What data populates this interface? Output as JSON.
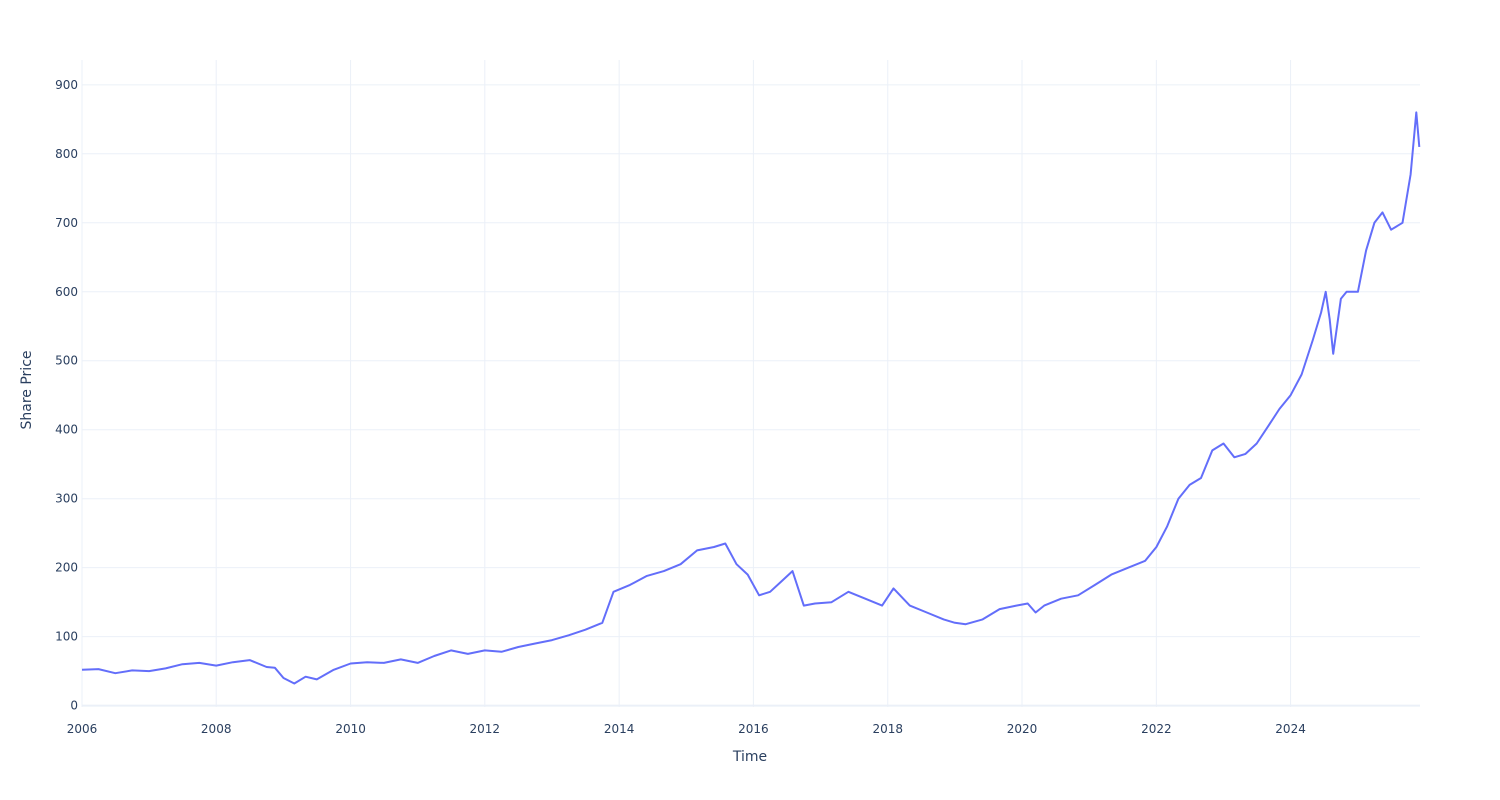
{
  "chart_data": {
    "type": "line",
    "xlabel": "Time",
    "ylabel": "Share Price",
    "x_axis_type": "date",
    "xlim": [
      "2006-01-01",
      "2025-12-05"
    ],
    "ylim": [
      -2,
      936
    ],
    "x_ticks": [
      "2006",
      "2008",
      "2010",
      "2012",
      "2014",
      "2016",
      "2018",
      "2020",
      "2022",
      "2024"
    ],
    "y_ticks": [
      0,
      100,
      200,
      300,
      400,
      500,
      600,
      700,
      800,
      900
    ],
    "grid": true,
    "legend": "none",
    "series": [
      {
        "color": "#636efa",
        "x": [
          "2006-01-01",
          "2006-04-01",
          "2006-07-01",
          "2006-10-01",
          "2007-01-01",
          "2007-04-01",
          "2007-07-01",
          "2007-10-01",
          "2008-01-01",
          "2008-04-01",
          "2008-07-01",
          "2008-10-01",
          "2008-11-15",
          "2009-01-01",
          "2009-03-01",
          "2009-05-01",
          "2009-07-01",
          "2009-10-01",
          "2010-01-01",
          "2010-04-01",
          "2010-07-01",
          "2010-10-01",
          "2011-01-01",
          "2011-04-01",
          "2011-07-01",
          "2011-10-01",
          "2012-01-01",
          "2012-04-01",
          "2012-07-01",
          "2012-10-01",
          "2013-01-01",
          "2013-04-01",
          "2013-07-01",
          "2013-10-01",
          "2013-12-01",
          "2014-03-01",
          "2014-06-01",
          "2014-09-01",
          "2014-12-01",
          "2015-03-01",
          "2015-06-01",
          "2015-08-01",
          "2015-10-01",
          "2015-12-01",
          "2016-02-01",
          "2016-04-01",
          "2016-06-01",
          "2016-08-01",
          "2016-10-01",
          "2016-12-01",
          "2017-03-01",
          "2017-06-01",
          "2017-09-01",
          "2017-12-01",
          "2018-02-01",
          "2018-05-01",
          "2018-08-01",
          "2018-11-01",
          "2019-01-01",
          "2019-03-01",
          "2019-06-01",
          "2019-09-01",
          "2019-12-01",
          "2020-02-01",
          "2020-03-15",
          "2020-05-01",
          "2020-08-01",
          "2020-11-01",
          "2021-02-01",
          "2021-05-01",
          "2021-08-01",
          "2021-11-01",
          "2022-01-01",
          "2022-03-01",
          "2022-05-01",
          "2022-07-01",
          "2022-09-01",
          "2022-11-01",
          "2023-01-01",
          "2023-03-01",
          "2023-05-01",
          "2023-07-01",
          "2023-09-01",
          "2023-11-01",
          "2024-01-01",
          "2024-03-01",
          "2024-05-01",
          "2024-06-15",
          "2024-07-10",
          "2024-08-01",
          "2024-08-20",
          "2024-10-01",
          "2024-11-01",
          "2025-01-01",
          "2025-02-15",
          "2025-04-01",
          "2025-05-15",
          "2025-07-01",
          "2025-09-01",
          "2025-10-15",
          "2025-11-15",
          "2025-12-01"
        ],
        "y": [
          52,
          53,
          47,
          51,
          50,
          54,
          60,
          62,
          58,
          63,
          66,
          56,
          55,
          40,
          32,
          42,
          38,
          52,
          61,
          63,
          62,
          67,
          62,
          72,
          80,
          75,
          80,
          78,
          85,
          90,
          95,
          102,
          110,
          120,
          165,
          175,
          188,
          195,
          205,
          225,
          230,
          235,
          205,
          190,
          160,
          165,
          180,
          195,
          145,
          148,
          150,
          165,
          155,
          145,
          170,
          145,
          135,
          125,
          120,
          118,
          125,
          140,
          145,
          148,
          135,
          145,
          155,
          160,
          175,
          190,
          200,
          210,
          230,
          260,
          300,
          320,
          330,
          370,
          380,
          360,
          365,
          380,
          405,
          430,
          450,
          480,
          530,
          570,
          600,
          560,
          510,
          590,
          600,
          600,
          660,
          700,
          715,
          690,
          700,
          770,
          860,
          810
        ]
      }
    ]
  }
}
